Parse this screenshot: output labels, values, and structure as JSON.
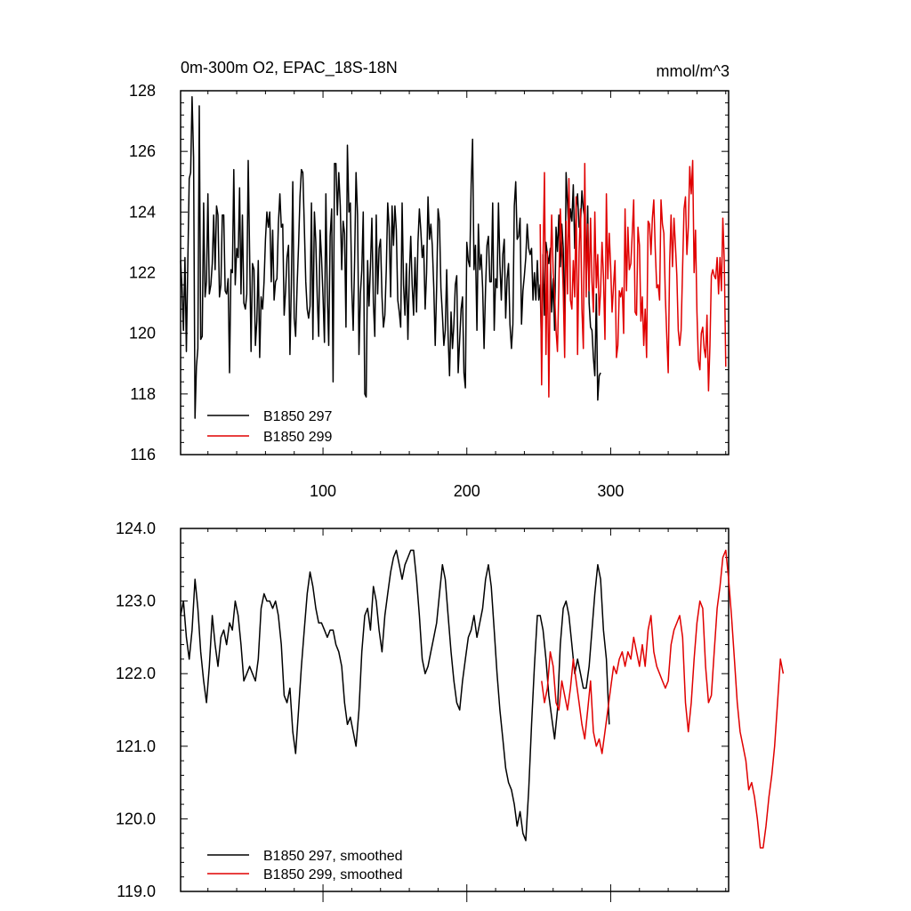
{
  "figure": {
    "title": "0m-300m O2, EPAC_18S-18N",
    "units": "mmol/m^3"
  },
  "chart_data": [
    {
      "type": "line",
      "title": "0m-300m O2, EPAC_18S-18N",
      "units_label": "mmol/m^3",
      "xlim": [
        1,
        382
      ],
      "ylim": [
        116,
        128
      ],
      "yticks": [
        116,
        118,
        120,
        122,
        124,
        126,
        128
      ],
      "ytick_labels": [
        "116",
        "118",
        "120",
        "122",
        "124",
        "126",
        "128"
      ],
      "xticks": [
        100,
        200,
        300
      ],
      "xtick_labels": [
        "100",
        "200",
        "300"
      ],
      "legend": "bottom-left",
      "series": [
        {
          "name": "B1850 297",
          "color": "#000000",
          "x_start": 1,
          "values": [
            122.4,
            121.5,
            120.1,
            122.5,
            119.4,
            122.3,
            125.1,
            125.3,
            127.8,
            125.8,
            117.2,
            118.9,
            119.5,
            127.5,
            119.8,
            119.9,
            124.3,
            121.2,
            121.7,
            124.6,
            121.3,
            121.6,
            122.3,
            123.9,
            122.1,
            124.2,
            123.9,
            121.2,
            121.6,
            123.9,
            123.9,
            121.4,
            121.3,
            121.8,
            118.7,
            122.1,
            122.0,
            125.4,
            121.6,
            122.8,
            122.5,
            124.8,
            121.3,
            123.9,
            121.0,
            120.8,
            121.3,
            125.7,
            122.6,
            119.4,
            122.3,
            122.1,
            119.6,
            120.4,
            122.4,
            119.2,
            121.2,
            120.8,
            121.7,
            123.1,
            124.0,
            123.5,
            124.0,
            121.7,
            123.4,
            121.1,
            121.7,
            121.8,
            123.6,
            124.6,
            123.5,
            123.6,
            120.6,
            121.4,
            122.5,
            122.9,
            119.3,
            121.6,
            125.0,
            120.5,
            119.9,
            121.6,
            122.9,
            124.5,
            125.4,
            125.3,
            123.6,
            121.7,
            120.8,
            120.5,
            120.9,
            124.3,
            119.8,
            124.0,
            123.0,
            121.2,
            119.9,
            123.4,
            122.5,
            121.2,
            119.7,
            124.6,
            121.3,
            119.6,
            123.2,
            124.1,
            118.4,
            125.6,
            125.6,
            123.9,
            125.3,
            124.2,
            122.1,
            123.7,
            123.3,
            120.2,
            126.2,
            124.0,
            124.3,
            121.5,
            120.1,
            122.4,
            125.3,
            123.9,
            119.3,
            121.3,
            122.1,
            124.0,
            118.0,
            117.9,
            122.4,
            120.9,
            122.2,
            123.8,
            121.0,
            119.9,
            123.9,
            121.3,
            122.8,
            123.1,
            121.2,
            120.2,
            120.6,
            122.1,
            124.3,
            123.5,
            121.2,
            124.2,
            122.9,
            124.2,
            123.4,
            121.1,
            120.7,
            120.2,
            124.3,
            121.6,
            120.6,
            122.3,
            119.8,
            121.9,
            123.2,
            121.6,
            120.6,
            122.5,
            120.7,
            123.0,
            124.1,
            123.4,
            122.5,
            122.9,
            120.8,
            122.0,
            124.5,
            123.1,
            123.6,
            122.9,
            121.5,
            119.6,
            121.5,
            124.1,
            123.7,
            121.5,
            120.6,
            119.6,
            120.1,
            122.1,
            119.9,
            118.6,
            120.7,
            119.5,
            120.3,
            121.6,
            121.9,
            118.7,
            119.8,
            120.8,
            121.2,
            118.7,
            118.2,
            123.0,
            122.4,
            122.2,
            124.9,
            126.4,
            122.1,
            122.9,
            120.1,
            123.6,
            122.1,
            122.6,
            121.5,
            119.5,
            121.5,
            122.9,
            123.2,
            121.7,
            121.7,
            124.3,
            120.1,
            121.8,
            121.5,
            124.3,
            122.3,
            121.1,
            122.6,
            123.1,
            120.5,
            121.8,
            122.3,
            120.3,
            119.5,
            120.3,
            124.2,
            125.0,
            123.1,
            123.2,
            123.8,
            120.3,
            121.4,
            121.9,
            122.5,
            123.6,
            122.8,
            122.6,
            122.8,
            121.1,
            122.0,
            121.1,
            122.4,
            121.1,
            121.6,
            119.2,
            122.6,
            120.6,
            123.0,
            122.6,
            122.3,
            122.8,
            120.7,
            121.8,
            120.1,
            123.5,
            122.7,
            123.9,
            122.2,
            123.6,
            122.8,
            120.0,
            125.3,
            124.3,
            123.2,
            124.1,
            123.7,
            124.9,
            122.8,
            124.1,
            124.6,
            123.5,
            123.6,
            124.7,
            124.1,
            123.8,
            121.9,
            124.2,
            121.0,
            120.2,
            120.1,
            119.2,
            118.6,
            121.3,
            117.8,
            118.6,
            118.7
          ],
          "smoothed": [
            122.8,
            123.0,
            122.5,
            122.2,
            122.6,
            123.3,
            122.9,
            122.3,
            121.9,
            121.6,
            122.1,
            122.8,
            122.4,
            122.1,
            122.5,
            122.6,
            122.4,
            122.7,
            122.6,
            123.0,
            122.8,
            122.4,
            121.9,
            122.0,
            122.1,
            122.0,
            121.9,
            122.2,
            122.9,
            123.1,
            123.0,
            123.0,
            122.9,
            123.0,
            122.8,
            122.4,
            121.7,
            121.6,
            121.8,
            121.2,
            120.9,
            121.5,
            122.1,
            122.6,
            123.1,
            123.4,
            123.2,
            122.9,
            122.7,
            122.7,
            122.6,
            122.5,
            122.6,
            122.6,
            122.4,
            122.3,
            122.1,
            121.6,
            121.3,
            121.4,
            121.2,
            121.0,
            121.5,
            122.3,
            122.8,
            122.9,
            122.6,
            123.2,
            123.0,
            122.6,
            122.3,
            122.8,
            123.1,
            123.4,
            123.6,
            123.7,
            123.5,
            123.3,
            123.5,
            123.6,
            123.7,
            123.7,
            123.3,
            122.8,
            122.2,
            122.0,
            122.1,
            122.3,
            122.5,
            122.7,
            123.1,
            123.5,
            123.3,
            122.8,
            122.3,
            121.9,
            121.6,
            121.5,
            121.9,
            122.2,
            122.5,
            122.6,
            122.8,
            122.5,
            122.7,
            122.9,
            123.3,
            123.5,
            123.2,
            122.6,
            122.0,
            121.5,
            121.1,
            120.7,
            120.5,
            120.4,
            120.2,
            119.9,
            120.1,
            119.8,
            119.7,
            120.4,
            121.3,
            122.1,
            122.8,
            122.8,
            122.6,
            122.2,
            121.7,
            121.4,
            121.1,
            121.5,
            122.4,
            122.9,
            123.0,
            122.8,
            122.4,
            122.0,
            122.2,
            122.0,
            121.8,
            121.8,
            122.1,
            122.6,
            123.1,
            123.5,
            123.3,
            122.6,
            122.2,
            121.3
          ],
          "smoothed_x_start": 1
        },
        {
          "name": "B1850 299",
          "color": "#e00000",
          "x_start": 251,
          "values": [
            123.6,
            118.3,
            122.4,
            125.3,
            119.3,
            122.7,
            117.9,
            121.9,
            123.9,
            122.0,
            121.3,
            120.1,
            119.4,
            121.6,
            124.1,
            122.8,
            121.4,
            119.2,
            123.7,
            121.3,
            125.1,
            121.1,
            120.8,
            122.4,
            121.2,
            124.5,
            119.3,
            122.7,
            124.1,
            120.8,
            119.5,
            125.6,
            121.2,
            123.6,
            121.4,
            123.8,
            121.7,
            120.7,
            124.0,
            121.5,
            122.6,
            120.6,
            121.4,
            123.0,
            121.9,
            119.8,
            124.6,
            121.8,
            123.3,
            122.2,
            120.7,
            121.6,
            122.4,
            119.2,
            119.6,
            121.4,
            121.2,
            121.5,
            120.0,
            124.1,
            121.4,
            123.5,
            122.1,
            122.3,
            123.3,
            124.4,
            120.7,
            120.6,
            123.5,
            122.9,
            120.4,
            121.2,
            119.6,
            120.8,
            119.2,
            123.7,
            123.6,
            122.6,
            123.8,
            124.4,
            122.8,
            121.5,
            121.6,
            121.1,
            124.4,
            123.6,
            123.3,
            121.2,
            119.9,
            118.7,
            122.3,
            123.9,
            122.2,
            123.8,
            122.9,
            121.9,
            120.1,
            119.6,
            120.1,
            122.2,
            124.1,
            124.5,
            122.6,
            123.5,
            125.5,
            124.6,
            125.7,
            122.0,
            123.4,
            120.7,
            119.1,
            118.8,
            120.0,
            120.2,
            119.5,
            119.2,
            120.6,
            118.1,
            119.6,
            121.9,
            122.1,
            121.9,
            121.8,
            122.5,
            121.3,
            122.5,
            121.4,
            123.8,
            122.4,
            118.9
          ],
          "smoothed": [
            121.9,
            121.6,
            121.8,
            122.3,
            122.1,
            121.6,
            121.5,
            121.9,
            121.7,
            121.5,
            121.8,
            122.2,
            121.9,
            121.6,
            121.3,
            121.1,
            121.5,
            121.9,
            121.2,
            121.0,
            121.1,
            120.9,
            121.2,
            121.5,
            121.8,
            122.1,
            122.0,
            122.2,
            122.3,
            122.1,
            122.3,
            122.2,
            122.5,
            122.3,
            122.1,
            122.4,
            122.1,
            122.6,
            122.8,
            122.3,
            122.1,
            122.0,
            121.9,
            121.8,
            121.9,
            122.4,
            122.6,
            122.7,
            122.8,
            122.5,
            121.6,
            121.2,
            121.6,
            122.2,
            122.7,
            123.0,
            122.9,
            122.1,
            121.6,
            121.7,
            122.3,
            122.9,
            123.2,
            123.6,
            123.7,
            123.3,
            122.8,
            122.2,
            121.6,
            121.2,
            121.0,
            120.8,
            120.4,
            120.5,
            120.3,
            120.0,
            119.6,
            119.6,
            119.9,
            120.3,
            120.6,
            121.0,
            121.6,
            122.2,
            122.0
          ],
          "smoothed_x_start": 252
        }
      ]
    },
    {
      "type": "line",
      "xlim": [
        1,
        382
      ],
      "ylim": [
        119.0,
        124.0
      ],
      "yticks": [
        119.0,
        120.0,
        121.0,
        122.0,
        123.0,
        124.0
      ],
      "ytick_labels": [
        "119.0",
        "120.0",
        "121.0",
        "122.0",
        "123.0",
        "124.0"
      ],
      "legend": "bottom-left",
      "series": [
        {
          "name": "B1850 297, smoothed",
          "color": "#000000"
        },
        {
          "name": "B1850 299, smoothed",
          "color": "#e00000"
        }
      ]
    }
  ]
}
